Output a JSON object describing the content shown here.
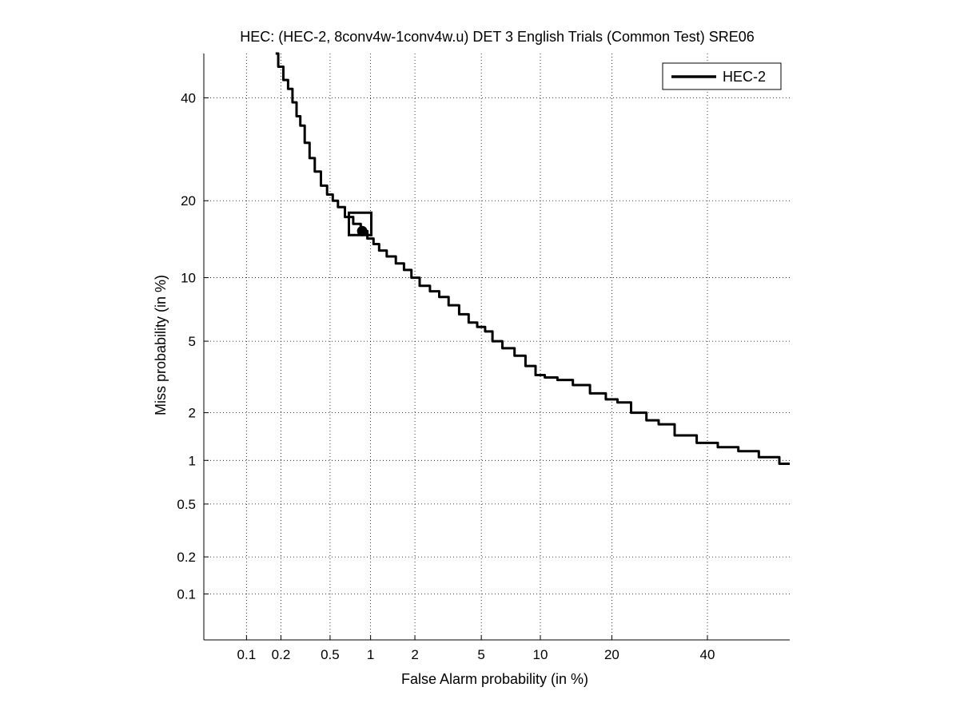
{
  "chart_data": {
    "type": "line",
    "title": "HEC: (HEC-2, 8conv4w-1conv4w.u) DET 3 English Trials (Common Test) SRE06",
    "xlabel": "False Alarm probability (in %)",
    "ylabel": "Miss probability (in %)",
    "scale": "normal-deviate (probit)",
    "xlim": [
      0.04,
      60
    ],
    "ylim": [
      0.04,
      50
    ],
    "x_ticks": [
      0.1,
      0.2,
      0.5,
      1,
      2,
      5,
      10,
      20,
      40
    ],
    "x_tick_labels": [
      "0.1",
      "0.2",
      "0.5",
      "1",
      "2",
      "5",
      "10",
      "20",
      "40"
    ],
    "y_ticks": [
      0.1,
      0.2,
      0.5,
      1,
      2,
      5,
      10,
      20,
      40
    ],
    "y_tick_labels": [
      "0.1",
      "0.2",
      "0.5",
      "1",
      "2",
      "5",
      "10",
      "20",
      "40"
    ],
    "grid": true,
    "legend_position": "top-right",
    "series": [
      {
        "name": "HEC-2",
        "color": "#000000",
        "x": [
          0.18,
          0.2,
          0.22,
          0.24,
          0.26,
          0.28,
          0.3,
          0.33,
          0.36,
          0.4,
          0.45,
          0.5,
          0.55,
          0.6,
          0.7,
          0.8,
          0.9,
          1.0,
          1.1,
          1.2,
          1.4,
          1.6,
          1.8,
          2.0,
          2.3,
          2.7,
          3.0,
          3.5,
          4.0,
          4.5,
          5.0,
          5.5,
          6.0,
          7.0,
          8.0,
          9.0,
          10.0,
          11.0,
          13.0,
          15.0,
          18.0,
          20.0,
          22.0,
          25.0,
          28.0,
          30.0,
          35.0,
          40.0,
          45.0,
          50.0,
          55.0,
          60.0
        ],
        "y": [
          50.0,
          47.0,
          44.0,
          42.0,
          39.0,
          36.0,
          34.0,
          30.5,
          27.5,
          25.0,
          22.5,
          21.0,
          20.0,
          19.0,
          17.5,
          16.5,
          15.5,
          14.5,
          13.8,
          13.0,
          12.3,
          11.5,
          10.8,
          10.0,
          9.2,
          8.7,
          8.2,
          7.5,
          6.8,
          6.2,
          5.9,
          5.6,
          5.0,
          4.6,
          4.2,
          3.7,
          3.3,
          3.2,
          3.1,
          2.9,
          2.6,
          2.4,
          2.3,
          2.0,
          1.8,
          1.7,
          1.45,
          1.3,
          1.22,
          1.15,
          1.05,
          0.95
        ]
      }
    ],
    "operating_points": [
      {
        "marker": "square",
        "x": 0.84,
        "y": 16.5
      },
      {
        "marker": "circle",
        "x": 0.87,
        "y": 15.5
      }
    ]
  }
}
